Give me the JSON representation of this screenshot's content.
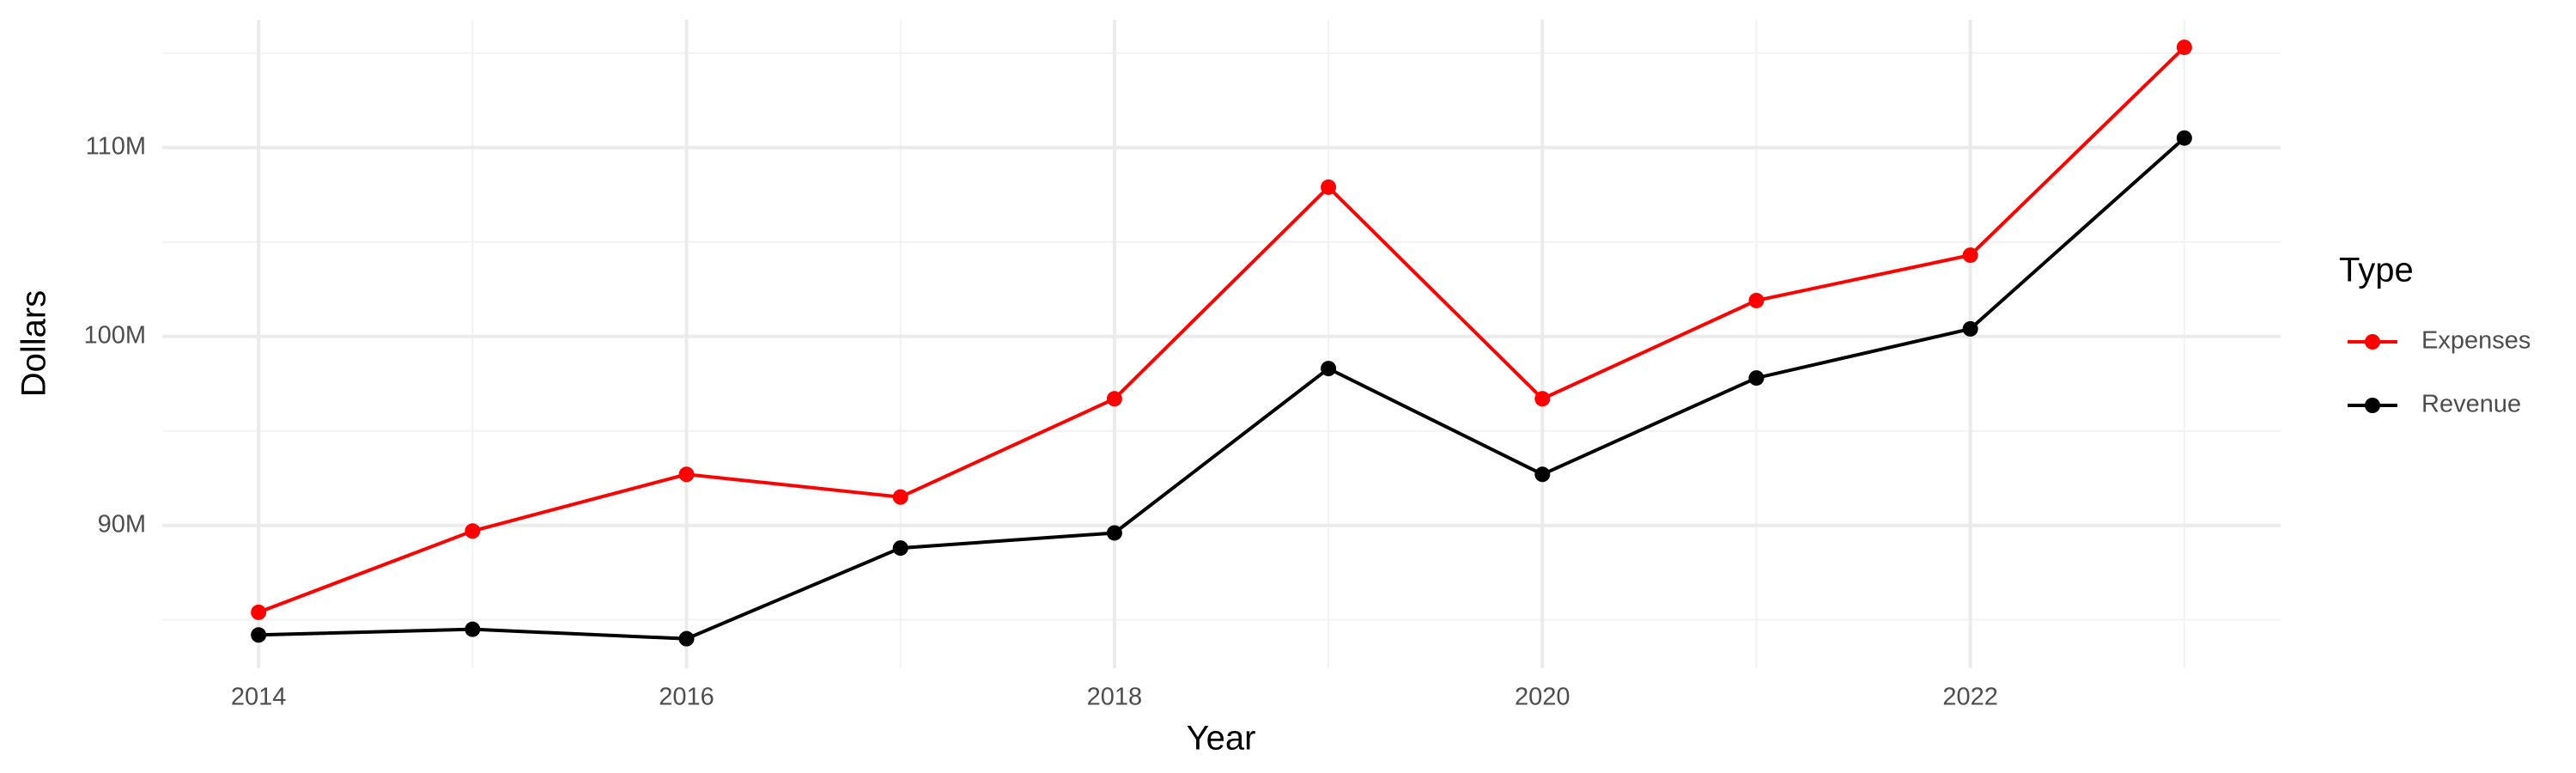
{
  "chart_data": {
    "type": "line",
    "x_label": "Year",
    "y_label": "Dollars",
    "x": [
      2014,
      2015,
      2016,
      2017,
      2018,
      2019,
      2020,
      2021,
      2022,
      2023
    ],
    "series": [
      {
        "name": "Expenses",
        "color": "#ff0000",
        "values": [
          85400000,
          89700000,
          92700000,
          91500000,
          96700000,
          107900000,
          96700000,
          101900000,
          104300000,
          115300000
        ]
      },
      {
        "name": "Revenue",
        "color": "#000000",
        "values": [
          84200000,
          84500000,
          84000000,
          88800000,
          89600000,
          98300000,
          92700000,
          97800000,
          100400000,
          110500000
        ]
      }
    ],
    "xlim": [
      2013.55,
      2023.45
    ],
    "xticks": [
      2014,
      2016,
      2018,
      2020,
      2022
    ],
    "xminor": [
      2015,
      2017,
      2019,
      2021,
      2023
    ],
    "ylim": [
      82440000,
      116760000
    ],
    "yticks": [
      {
        "value": 90000000,
        "label": "90M"
      },
      {
        "value": 100000000,
        "label": "100M"
      },
      {
        "value": 110000000,
        "label": "110M"
      }
    ],
    "yminor": [
      85000000,
      95000000,
      105000000,
      115000000
    ],
    "grid": true,
    "legend_title": "Type",
    "legend_position": "right"
  }
}
